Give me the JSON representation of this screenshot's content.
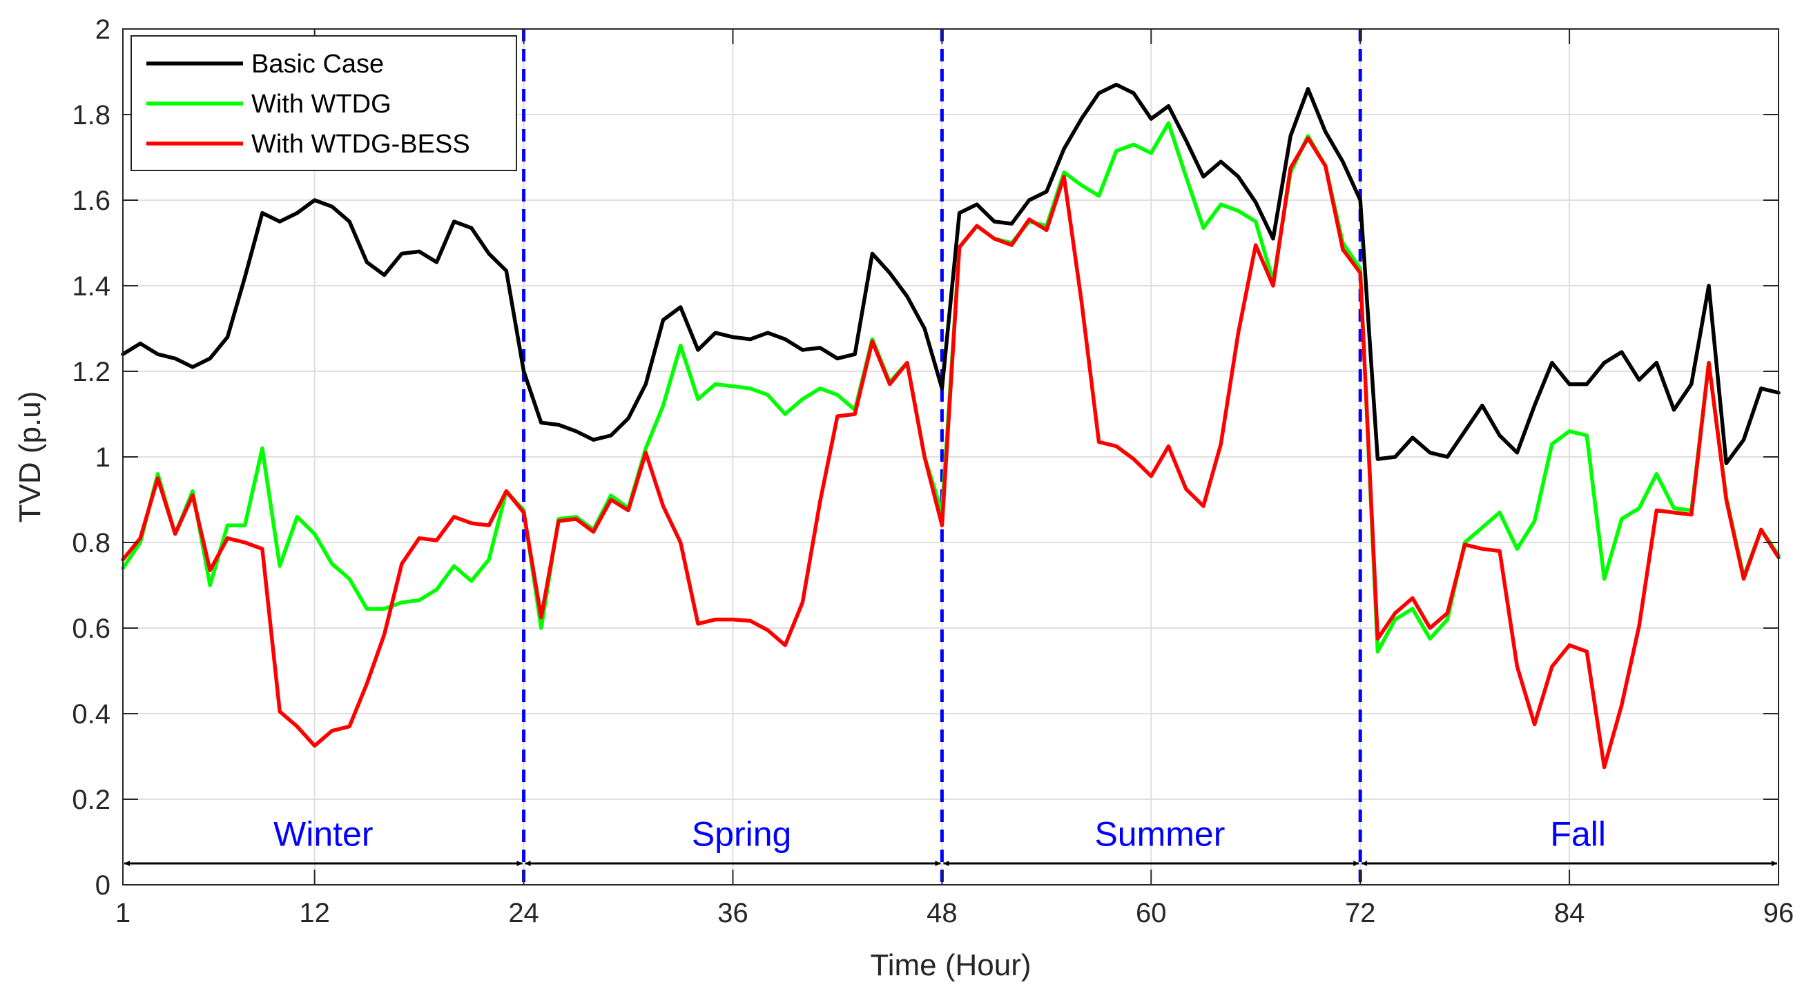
{
  "chart_data": {
    "type": "line",
    "xlabel": "Time (Hour)",
    "ylabel": "TVD (p.u)",
    "xlim": [
      1,
      96
    ],
    "ylim": [
      0,
      2
    ],
    "xticks": [
      1,
      12,
      24,
      36,
      48,
      60,
      72,
      84,
      96
    ],
    "xtick_labels": [
      "1",
      "12",
      "24",
      "36",
      "48",
      "60",
      "72",
      "84",
      "96"
    ],
    "yticks": [
      0,
      0.2,
      0.4,
      0.6,
      0.8,
      1,
      1.2,
      1.4,
      1.6,
      1.8,
      2
    ],
    "ytick_labels": [
      "0",
      "0.2",
      "0.4",
      "0.6",
      "0.8",
      "1",
      "1.2",
      "1.4",
      "1.6",
      "1.8",
      "2"
    ],
    "grid": true,
    "legend_position": "top-left",
    "x": [
      1,
      2,
      3,
      4,
      5,
      6,
      7,
      8,
      9,
      10,
      11,
      12,
      13,
      14,
      15,
      16,
      17,
      18,
      19,
      20,
      21,
      22,
      23,
      24,
      25,
      26,
      27,
      28,
      29,
      30,
      31,
      32,
      33,
      34,
      35,
      36,
      37,
      38,
      39,
      40,
      41,
      42,
      43,
      44,
      45,
      46,
      47,
      48,
      49,
      50,
      51,
      52,
      53,
      54,
      55,
      56,
      57,
      58,
      59,
      60,
      61,
      62,
      63,
      64,
      65,
      66,
      67,
      68,
      69,
      70,
      71,
      72,
      73,
      74,
      75,
      76,
      77,
      78,
      79,
      80,
      81,
      82,
      83,
      84,
      85,
      86,
      87,
      88,
      89,
      90,
      91,
      92,
      93,
      94,
      95,
      96
    ],
    "series": [
      {
        "name": "Basic Case",
        "color": "#000000",
        "values": [
          1.24,
          1.265,
          1.24,
          1.23,
          1.21,
          1.23,
          1.28,
          1.42,
          1.57,
          1.55,
          1.57,
          1.6,
          1.585,
          1.55,
          1.455,
          1.425,
          1.475,
          1.48,
          1.455,
          1.55,
          1.535,
          1.475,
          1.435,
          1.2,
          1.08,
          1.075,
          1.06,
          1.04,
          1.05,
          1.09,
          1.17,
          1.32,
          1.35,
          1.25,
          1.29,
          1.28,
          1.275,
          1.29,
          1.275,
          1.25,
          1.255,
          1.23,
          1.24,
          1.475,
          1.43,
          1.375,
          1.3,
          1.16,
          1.57,
          1.59,
          1.55,
          1.545,
          1.6,
          1.62,
          1.72,
          1.79,
          1.85,
          1.87,
          1.85,
          1.79,
          1.82,
          1.74,
          1.655,
          1.69,
          1.655,
          1.595,
          1.51,
          1.75,
          1.86,
          1.76,
          1.69,
          1.6,
          0.995,
          1.0,
          1.045,
          1.01,
          1.0,
          1.06,
          1.12,
          1.05,
          1.01,
          1.12,
          1.22,
          1.17,
          1.17,
          1.22,
          1.245,
          1.18,
          1.22,
          1.11,
          1.17,
          1.4,
          0.985,
          1.04,
          1.16,
          1.15
        ]
      },
      {
        "name": "With WTDG",
        "color": "#00ff00",
        "values": [
          0.74,
          0.8,
          0.96,
          0.82,
          0.92,
          0.7,
          0.84,
          0.84,
          1.02,
          0.745,
          0.86,
          0.82,
          0.75,
          0.715,
          0.645,
          0.645,
          0.66,
          0.665,
          0.69,
          0.745,
          0.71,
          0.76,
          0.92,
          0.875,
          0.6,
          0.855,
          0.86,
          0.83,
          0.91,
          0.88,
          1.02,
          1.12,
          1.26,
          1.135,
          1.17,
          1.165,
          1.16,
          1.145,
          1.1,
          1.135,
          1.16,
          1.145,
          1.11,
          1.275,
          1.175,
          1.22,
          1.0,
          0.87,
          1.49,
          1.54,
          1.51,
          1.5,
          1.55,
          1.54,
          1.665,
          1.635,
          1.61,
          1.715,
          1.73,
          1.71,
          1.78,
          1.655,
          1.535,
          1.59,
          1.575,
          1.55,
          1.41,
          1.665,
          1.75,
          1.68,
          1.5,
          1.44,
          0.545,
          0.62,
          0.645,
          0.575,
          0.62,
          0.8,
          0.835,
          0.87,
          0.785,
          0.85,
          1.03,
          1.06,
          1.05,
          0.715,
          0.855,
          0.88,
          0.96,
          0.88,
          0.875,
          1.22,
          0.905,
          0.72,
          0.83,
          0.77
        ]
      },
      {
        "name": "With WTDG-BESS",
        "color": "#ff0000",
        "values": [
          0.76,
          0.81,
          0.95,
          0.82,
          0.91,
          0.735,
          0.81,
          0.8,
          0.785,
          0.405,
          0.37,
          0.325,
          0.36,
          0.37,
          0.47,
          0.585,
          0.75,
          0.81,
          0.805,
          0.86,
          0.845,
          0.84,
          0.92,
          0.87,
          0.625,
          0.85,
          0.855,
          0.825,
          0.9,
          0.875,
          1.01,
          0.885,
          0.8,
          0.61,
          0.62,
          0.62,
          0.617,
          0.595,
          0.56,
          0.66,
          0.895,
          1.095,
          1.1,
          1.27,
          1.17,
          1.22,
          1.0,
          0.84,
          1.49,
          1.54,
          1.51,
          1.495,
          1.555,
          1.53,
          1.655,
          1.365,
          1.035,
          1.025,
          0.995,
          0.955,
          1.025,
          0.925,
          0.885,
          1.03,
          1.29,
          1.495,
          1.4,
          1.675,
          1.745,
          1.68,
          1.485,
          1.43,
          0.575,
          0.635,
          0.67,
          0.6,
          0.635,
          0.795,
          0.785,
          0.78,
          0.51,
          0.375,
          0.51,
          0.56,
          0.545,
          0.275,
          0.42,
          0.605,
          0.875,
          0.87,
          0.865,
          1.22,
          0.9,
          0.715,
          0.83,
          0.765
        ]
      }
    ],
    "dividers": [
      24,
      48,
      72
    ],
    "divider_color": "#0000ff",
    "season_labels": [
      {
        "label": "Winter",
        "x": 12.5
      },
      {
        "label": "Spring",
        "x": 36.5
      },
      {
        "label": "Summer",
        "x": 60.5
      },
      {
        "label": "Fall",
        "x": 84.5
      }
    ],
    "season_label_color": "#0000ff",
    "season_arrows": [
      [
        1,
        24
      ],
      [
        24,
        48
      ],
      [
        48,
        72
      ],
      [
        72,
        96
      ]
    ],
    "season_label_y": 0.12,
    "arrow_y": 0.05
  }
}
